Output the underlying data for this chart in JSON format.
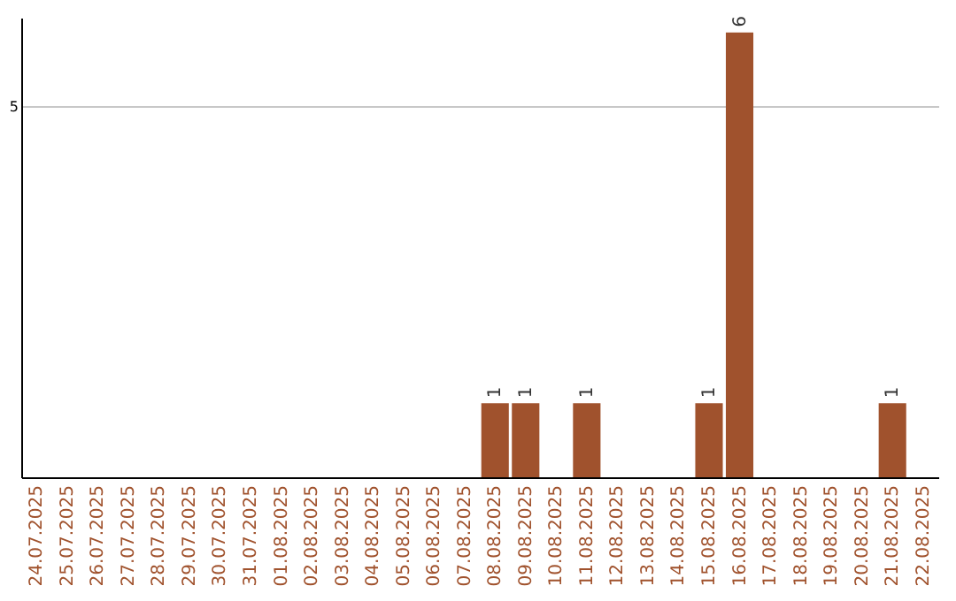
{
  "chart_data": {
    "type": "bar",
    "categories": [
      "24.07.2025",
      "25.07.2025",
      "26.07.2025",
      "27.07.2025",
      "28.07.2025",
      "29.07.2025",
      "30.07.2025",
      "31.07.2025",
      "01.08.2025",
      "02.08.2025",
      "03.08.2025",
      "04.08.2025",
      "05.08.2025",
      "06.08.2025",
      "07.08.2025",
      "08.08.2025",
      "09.08.2025",
      "10.08.2025",
      "11.08.2025",
      "12.08.2025",
      "13.08.2025",
      "14.08.2025",
      "15.08.2025",
      "16.08.2025",
      "17.08.2025",
      "18.08.2025",
      "19.08.2025",
      "20.08.2025",
      "21.08.2025",
      "22.08.2025"
    ],
    "values": [
      null,
      null,
      null,
      null,
      null,
      null,
      null,
      null,
      null,
      null,
      null,
      null,
      null,
      null,
      null,
      1,
      1,
      null,
      1,
      null,
      null,
      null,
      1,
      6,
      null,
      null,
      null,
      null,
      1,
      null
    ],
    "data_labels": true,
    "color": "#a0522d",
    "ylim": [
      0,
      6.2
    ],
    "yticks": [
      5
    ],
    "grid": "y"
  }
}
